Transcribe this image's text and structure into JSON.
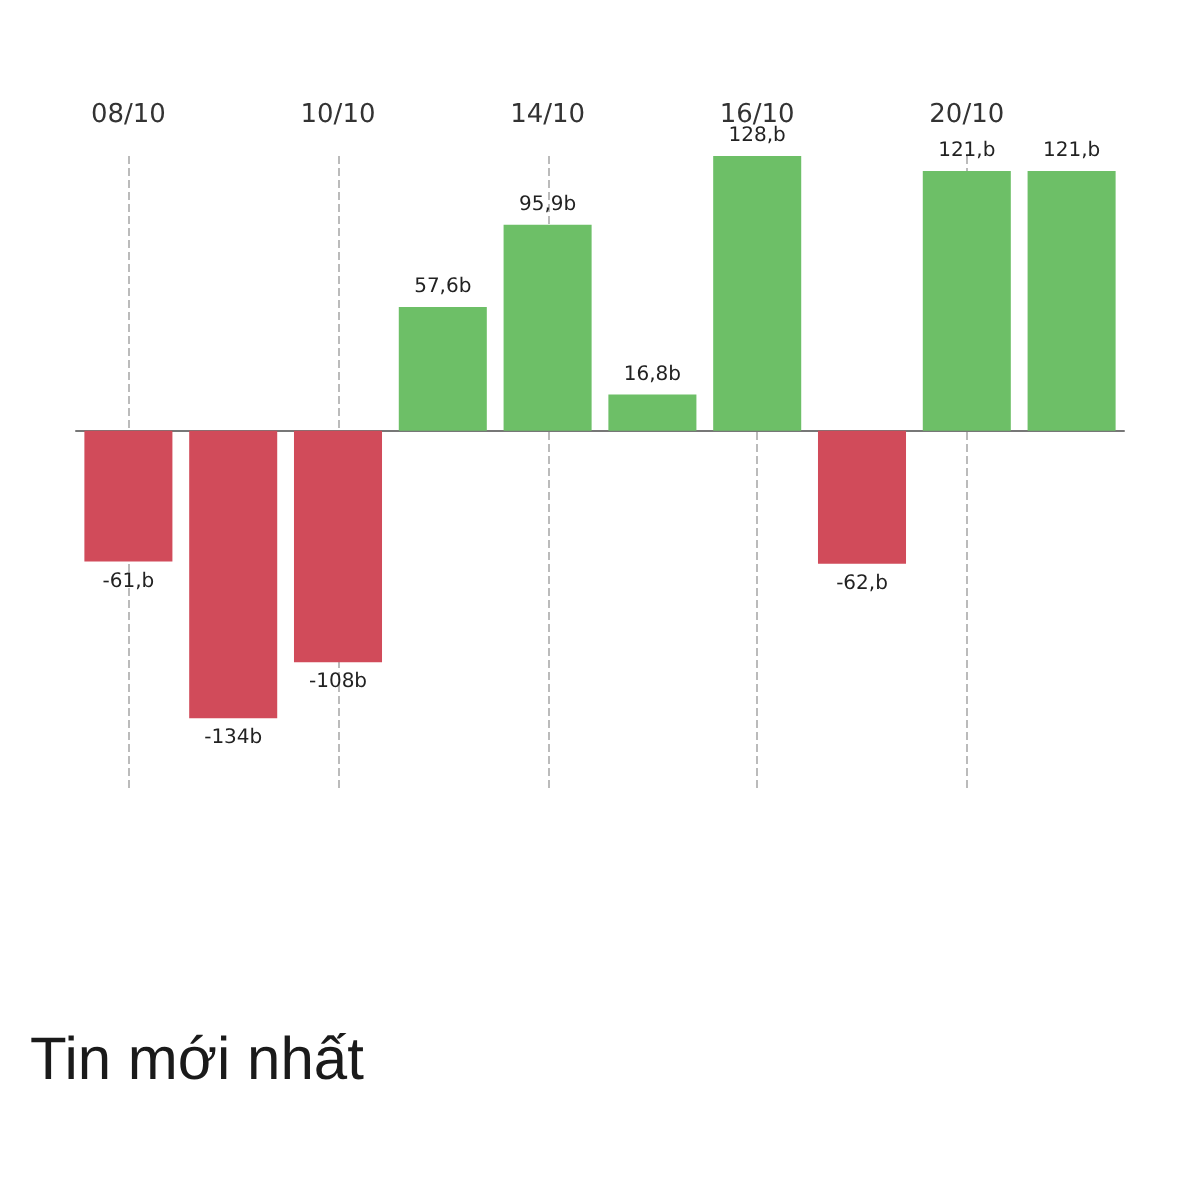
{
  "chart_data": {
    "type": "bar",
    "categories": [
      "08/10",
      null,
      "10/10",
      null,
      "14/10",
      null,
      "16/10",
      null,
      "20/10",
      null
    ],
    "values": [
      -61,
      -134,
      -108,
      57.6,
      95.9,
      16.8,
      128,
      -62,
      121,
      121
    ],
    "colors": [
      "#d14b5a",
      "#d14b5a",
      "#d14b5a",
      "#6dbf67",
      "#6dbf67",
      "#6dbf67",
      "#6dbf67",
      "#d14b5a",
      "#6dbf67",
      "#6dbf67"
    ],
    "value_labels": [
      "-61,b",
      "-134b",
      "-108b",
      "57,6b",
      "95,9b",
      "16,8b",
      "128,b",
      "-62,b",
      "121,b",
      "121,b"
    ],
    "grid": "x",
    "annotations": [
      "Tin mới nhất"
    ]
  }
}
